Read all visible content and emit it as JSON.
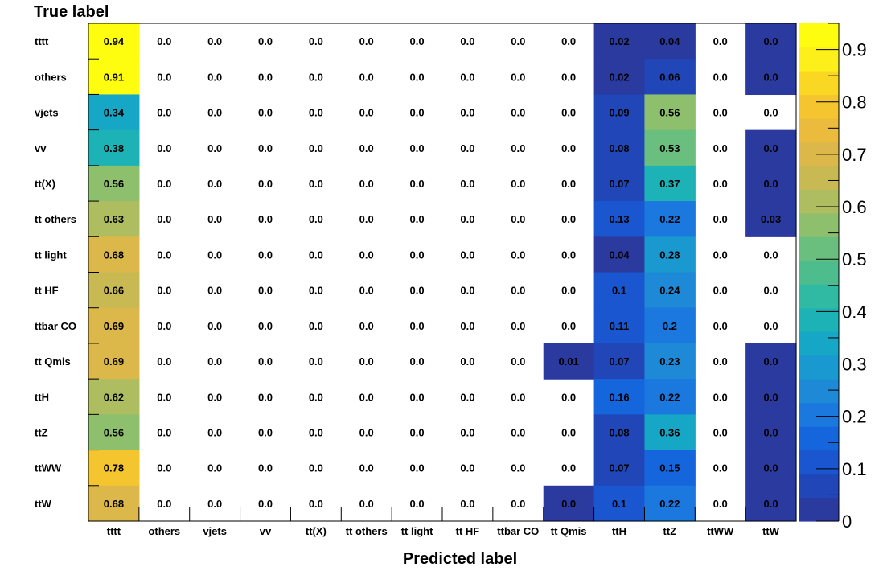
{
  "chart_data": {
    "type": "heatmap",
    "xlabel": "Predicted label",
    "ylabel": "True label",
    "x_categories": [
      "tttt",
      "others",
      "vjets",
      "vv",
      "tt(X)",
      "tt others",
      "tt light",
      "tt HF",
      "ttbar CO",
      "tt Qmis",
      "ttH",
      "ttZ",
      "ttWW",
      "ttW"
    ],
    "y_categories": [
      "tttt",
      "others",
      "vjets",
      "vv",
      "tt(X)",
      "tt others",
      "tt light",
      "tt HF",
      "ttbar CO",
      "tt Qmis",
      "ttH",
      "ttZ",
      "ttWW",
      "ttW"
    ],
    "values": [
      [
        0.94,
        0.0,
        0.0,
        0.0,
        0.0,
        0.0,
        0.0,
        0.0,
        0.0,
        0.0,
        0.02,
        0.04,
        0.0,
        0.0
      ],
      [
        0.91,
        0.0,
        0.0,
        0.0,
        0.0,
        0.0,
        0.0,
        0.0,
        0.0,
        0.0,
        0.02,
        0.06,
        0.0,
        0.0
      ],
      [
        0.34,
        0.0,
        0.0,
        0.0,
        0.0,
        0.0,
        0.0,
        0.0,
        0.0,
        0.0,
        0.09,
        0.56,
        0.0,
        0.0
      ],
      [
        0.38,
        0.0,
        0.0,
        0.0,
        0.0,
        0.0,
        0.0,
        0.0,
        0.0,
        0.0,
        0.08,
        0.53,
        0.0,
        0.0
      ],
      [
        0.56,
        0.0,
        0.0,
        0.0,
        0.0,
        0.0,
        0.0,
        0.0,
        0.0,
        0.0,
        0.07,
        0.37,
        0.0,
        0.0
      ],
      [
        0.63,
        0.0,
        0.0,
        0.0,
        0.0,
        0.0,
        0.0,
        0.0,
        0.0,
        0.0,
        0.13,
        0.22,
        0.0,
        0.03
      ],
      [
        0.68,
        0.0,
        0.0,
        0.0,
        0.0,
        0.0,
        0.0,
        0.0,
        0.0,
        0.0,
        0.04,
        0.28,
        0.0,
        0.0
      ],
      [
        0.66,
        0.0,
        0.0,
        0.0,
        0.0,
        0.0,
        0.0,
        0.0,
        0.0,
        0.0,
        0.1,
        0.24,
        0.0,
        0.0
      ],
      [
        0.69,
        0.0,
        0.0,
        0.0,
        0.0,
        0.0,
        0.0,
        0.0,
        0.0,
        0.0,
        0.11,
        0.2,
        0.0,
        0.0
      ],
      [
        0.69,
        0.0,
        0.0,
        0.0,
        0.0,
        0.0,
        0.0,
        0.0,
        0.0,
        0.01,
        0.07,
        0.23,
        0.0,
        0.0
      ],
      [
        0.62,
        0.0,
        0.0,
        0.0,
        0.0,
        0.0,
        0.0,
        0.0,
        0.0,
        0.0,
        0.16,
        0.22,
        0.0,
        0.0
      ],
      [
        0.56,
        0.0,
        0.0,
        0.0,
        0.0,
        0.0,
        0.0,
        0.0,
        0.0,
        0.0,
        0.08,
        0.36,
        0.0,
        0.0
      ],
      [
        0.78,
        0.0,
        0.0,
        0.0,
        0.0,
        0.0,
        0.0,
        0.0,
        0.0,
        0.0,
        0.07,
        0.15,
        0.0,
        0.0
      ],
      [
        0.68,
        0.0,
        0.0,
        0.0,
        0.0,
        0.0,
        0.0,
        0.0,
        0.0,
        0.0,
        0.1,
        0.22,
        0.0,
        0.0
      ]
    ],
    "shaded_zero_cells": [
      [
        0,
        13
      ],
      [
        1,
        13
      ],
      [
        3,
        13
      ],
      [
        4,
        13
      ],
      [
        9,
        13
      ],
      [
        10,
        13
      ],
      [
        11,
        13
      ],
      [
        12,
        13
      ],
      [
        13,
        13
      ],
      [
        13,
        9
      ]
    ],
    "colorscale_range": [
      0,
      0.95
    ],
    "colorbar_ticks": [
      {
        "value": 0,
        "label": "0"
      },
      {
        "value": 0.1,
        "label": "0.1"
      },
      {
        "value": 0.2,
        "label": "0.2"
      },
      {
        "value": 0.3,
        "label": "0.3"
      },
      {
        "value": 0.4,
        "label": "0.4"
      },
      {
        "value": 0.5,
        "label": "0.5"
      },
      {
        "value": 0.6,
        "label": "0.6"
      },
      {
        "value": 0.7,
        "label": "0.7"
      },
      {
        "value": 0.8,
        "label": "0.8"
      },
      {
        "value": 0.9,
        "label": "0.9"
      }
    ],
    "colormap": [
      "#2b3a9e",
      "#2146b8",
      "#1a56d0",
      "#1566dc",
      "#1a78de",
      "#1e89d6",
      "#1a98d0",
      "#16a6c6",
      "#1cb2b6",
      "#30b9a3",
      "#4dbd8e",
      "#6bbf7e",
      "#8dbf6d",
      "#aebd5f",
      "#c9b953",
      "#dcb84a",
      "#ebbb3e",
      "#f5c52f",
      "#fad722",
      "#fdf01a",
      "#fffd0f"
    ],
    "grid": false,
    "colorbar": "right"
  }
}
